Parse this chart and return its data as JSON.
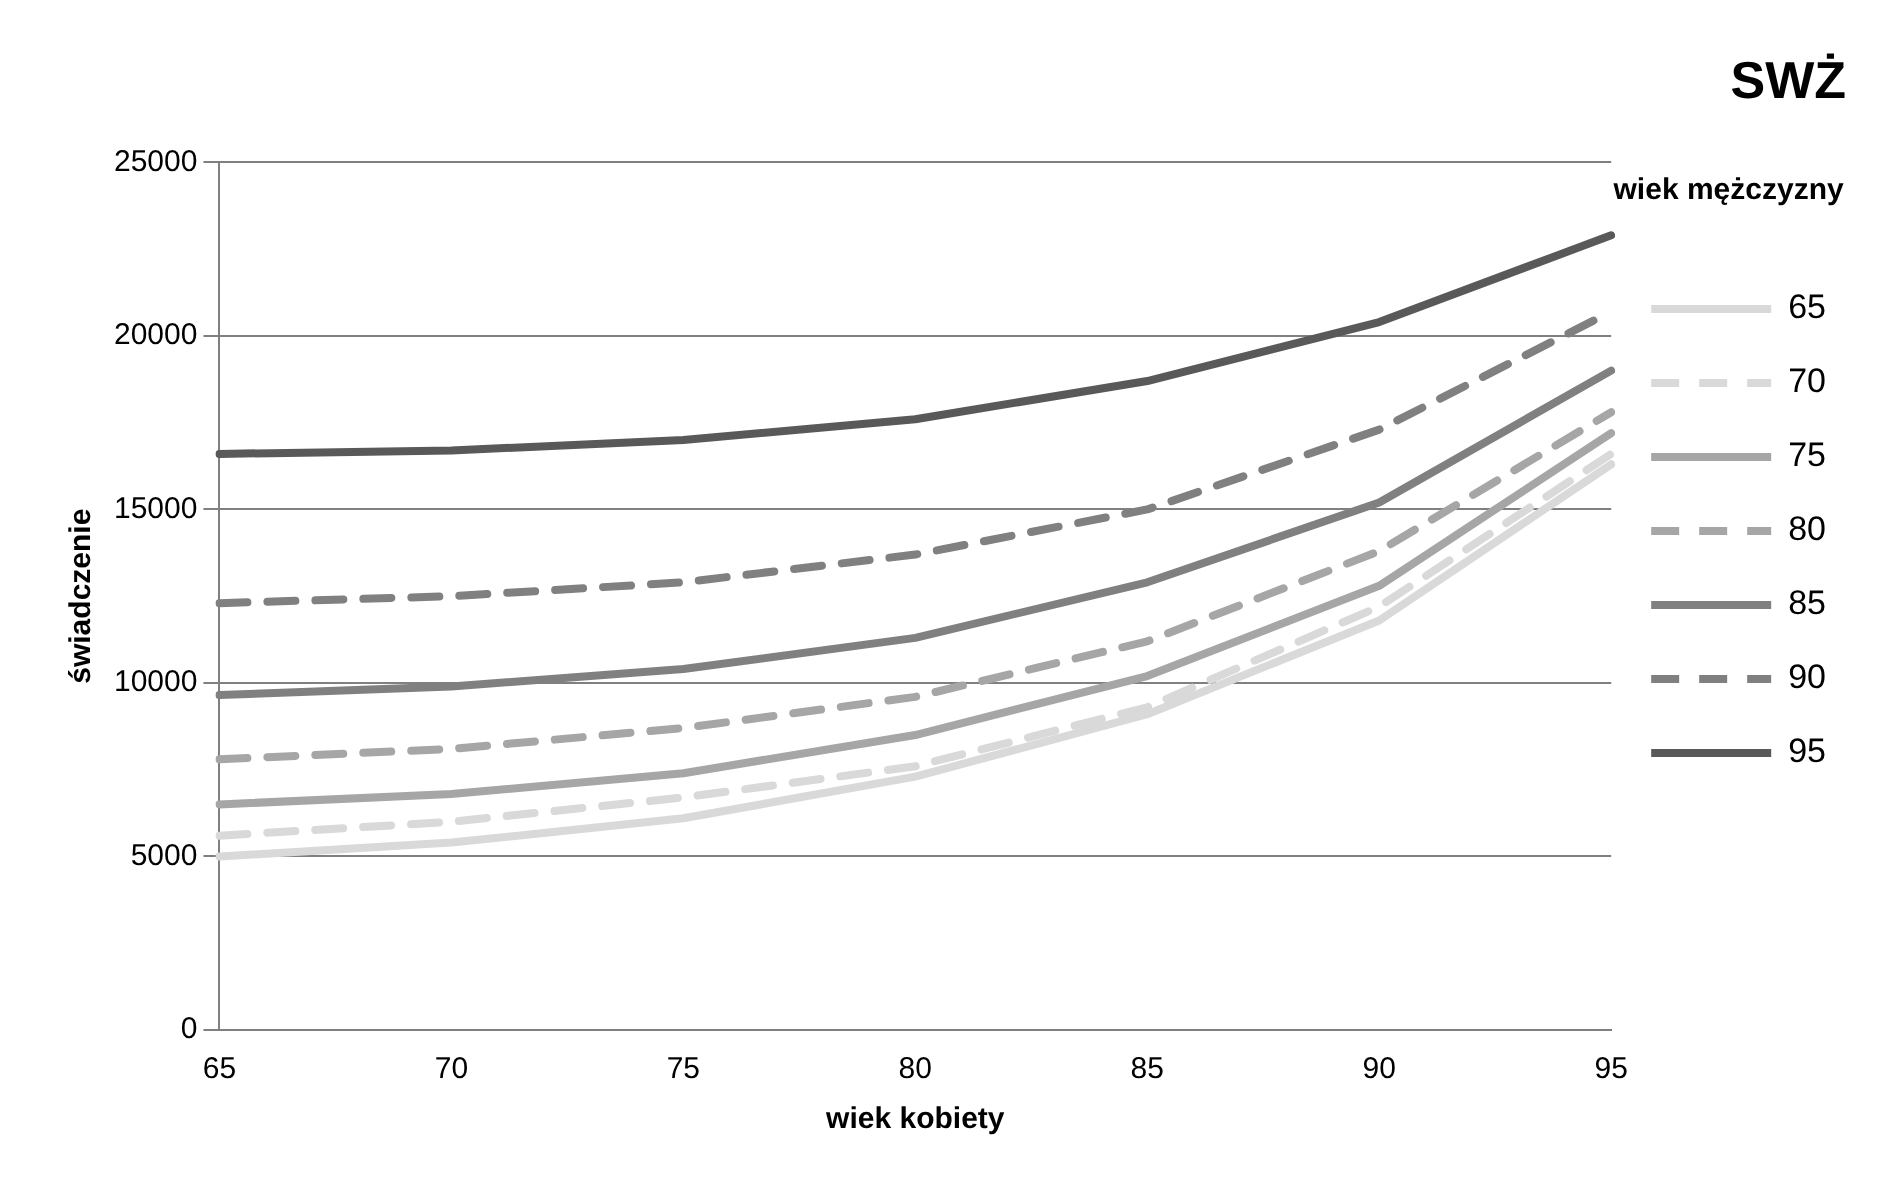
{
  "chart_data": {
    "type": "line",
    "title": "SWŻ",
    "xlabel": "wiek kobiety",
    "ylabel": "świadczenie",
    "legend_title": "wiek mężczyzny",
    "categories": [
      "65",
      "70",
      "75",
      "80",
      "85",
      "90",
      "95"
    ],
    "series": [
      {
        "name": "65",
        "color": "#d9d9d9",
        "line_style": "solid",
        "values": [
          5000,
          5400,
          6100,
          7300,
          9100,
          11800,
          16300
        ]
      },
      {
        "name": "70",
        "color": "#d9d9d9",
        "line_style": "dashed",
        "values": [
          5600,
          6000,
          6700,
          7600,
          9300,
          12200,
          16600
        ]
      },
      {
        "name": "75",
        "color": "#a6a6a6",
        "line_style": "solid",
        "values": [
          6500,
          6800,
          7400,
          8500,
          10200,
          12800,
          17200
        ]
      },
      {
        "name": "80",
        "color": "#a6a6a6",
        "line_style": "dashed",
        "values": [
          7800,
          8100,
          8700,
          9600,
          11200,
          13800,
          17800
        ]
      },
      {
        "name": "85",
        "color": "#808080",
        "line_style": "solid",
        "values": [
          9650,
          9900,
          10400,
          11300,
          12900,
          15200,
          19000
        ]
      },
      {
        "name": "90",
        "color": "#808080",
        "line_style": "dashed",
        "values": [
          12300,
          12500,
          12900,
          13700,
          15000,
          17300,
          20700
        ]
      },
      {
        "name": "95",
        "color": "#595959",
        "line_style": "solid",
        "values": [
          16600,
          16700,
          17000,
          17600,
          18700,
          20400,
          22900
        ]
      }
    ],
    "ylim": [
      0,
      25000
    ],
    "yticks": [
      0,
      5000,
      10000,
      15000,
      20000,
      25000
    ],
    "grid": "y",
    "legend": "right",
    "marker": "none"
  }
}
